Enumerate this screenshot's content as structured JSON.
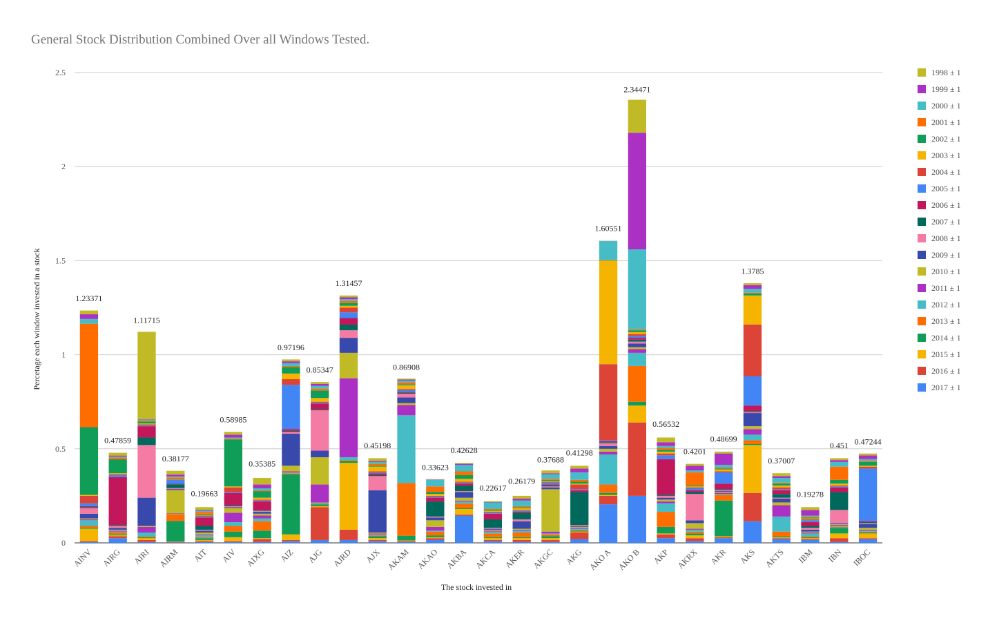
{
  "chart_data": {
    "type": "stacked_bar",
    "title": "General Stock Distribution Combined Over all Windows Tested.",
    "x_label": "The stock invested in",
    "y_label": "Percetage each window invested in a stock",
    "categories": [
      "AINV",
      "AIRG",
      "AIRI",
      "AIRM",
      "AIT",
      "AIV",
      "AIXG",
      "AIZ",
      "AJG",
      "AJRD",
      "AJX",
      "AKAM",
      "AKAO",
      "AKBA",
      "AKCA",
      "AKER",
      "AKGC",
      "AKG",
      "AKO A",
      "AKO B",
      "AKP",
      "AKRX",
      "AKR",
      "AKS",
      "AKTS",
      "IBM",
      "IBN",
      "IBOC"
    ],
    "totals": [
      1.23371,
      0.47859,
      1.11715,
      0.38177,
      0.19663,
      0.58985,
      0.35385,
      0.97196,
      0.85347,
      1.31457,
      0.45198,
      0.86908,
      0.33623,
      0.42628,
      0.22617,
      0.26179,
      0.37688,
      0.41298,
      1.60551,
      2.34471,
      0.56532,
      0.4201,
      0.48699,
      1.3785,
      0.37007,
      0.19278,
      0.451,
      0.47244
    ],
    "ylim": [
      0,
      2.5
    ],
    "yticks": [
      0,
      0.5,
      1,
      1.5,
      2,
      2.5
    ],
    "grid": true,
    "legend": "right",
    "stack_order": "last-series-at-bottom",
    "series": [
      {
        "name": "1998 ± 1",
        "color": "#c0ba26",
        "values": [
          0.02,
          0.015,
          0.465,
          0.02,
          0.015,
          0.015,
          0.035,
          0.01,
          0.01,
          0.01,
          0.015,
          0.005,
          0.002,
          0.005,
          0.005,
          0.015,
          0.015,
          0.015,
          0.001,
          0.175,
          0.025,
          0.01,
          0.01,
          0.01,
          0.015,
          0.015,
          0.01,
          0.01
        ]
      },
      {
        "name": "1999 ± 1",
        "color": "#ab30c4",
        "values": [
          0.025,
          0.005,
          0.002,
          0.01,
          0.005,
          0.015,
          0.02,
          0.01,
          0.01,
          0.01,
          0.005,
          0.005,
          0.002,
          0.005,
          0.002,
          0.01,
          0.005,
          0.02,
          0.001,
          0.62,
          0.02,
          0.025,
          0.06,
          0.02,
          0.01,
          0.03,
          0.01,
          0.02
        ]
      },
      {
        "name": "2000 ± 1",
        "color": "#46bdc6",
        "values": [
          0.025,
          0.005,
          0.005,
          0.005,
          0.005,
          0.005,
          0.01,
          0.015,
          0.015,
          0.01,
          0.01,
          0.01,
          0.035,
          0.035,
          0.035,
          0.03,
          0.025,
          0.04,
          0.1,
          0.425,
          0.01,
          0.01,
          0.015,
          0.02,
          0.025,
          0.005,
          0.025,
          0.01
        ]
      },
      {
        "name": "2001 ± 1",
        "color": "#ff6d00",
        "values": [
          0.55,
          0.01,
          0.005,
          0.005,
          0.01,
          0.005,
          0.005,
          0.005,
          0.01,
          0.01,
          0.01,
          0.01,
          0.03,
          0.02,
          0.005,
          0.005,
          0.005,
          0.01,
          0.002,
          0.005,
          0.01,
          0.07,
          0.005,
          0.005,
          0.005,
          0.005,
          0.07,
          0.005
        ]
      },
      {
        "name": "2002 ± 1",
        "color": "#0f9d58",
        "values": [
          0.36,
          0.074,
          0.01,
          0.003,
          0.005,
          0.25,
          0.035,
          0.035,
          0.04,
          0.015,
          0.005,
          0.005,
          0.01,
          0.02,
          0.005,
          0.005,
          0.005,
          0.01,
          0.002,
          0.01,
          0.01,
          0.005,
          0.005,
          0.01,
          0.01,
          0.005,
          0.02,
          0.02
        ]
      },
      {
        "name": "2003 ± 1",
        "color": "#f4b400",
        "values": [
          0.005,
          0.005,
          0.005,
          0.003,
          0.005,
          0.005,
          0.01,
          0.03,
          0.02,
          0.01,
          0.025,
          0.02,
          0.01,
          0.015,
          0.005,
          0.01,
          0.005,
          0.005,
          0.55,
          0.01,
          0.01,
          0.005,
          0.01,
          0.155,
          0.01,
          0.005,
          0.01,
          0.005
        ]
      },
      {
        "name": "2004 ± 1",
        "color": "#db4437",
        "values": [
          0.04,
          0.005,
          0.005,
          0.003,
          0.005,
          0.025,
          0.005,
          0.03,
          0.005,
          0.025,
          0.005,
          0.005,
          0.005,
          0.005,
          0.005,
          0.005,
          0.005,
          0.025,
          0.405,
          0.01,
          0.01,
          0.005,
          0.005,
          0.275,
          0.01,
          0.005,
          0.005,
          0.01
        ]
      },
      {
        "name": "2005 ± 1",
        "color": "#4285f4",
        "values": [
          0.015,
          0.01,
          0.005,
          0.02,
          0.005,
          0.005,
          0.005,
          0.235,
          0.005,
          0.03,
          0.005,
          0.01,
          0.005,
          0.005,
          0.005,
          0.005,
          0.01,
          0.005,
          0.005,
          0.01,
          0.02,
          0.01,
          0.06,
          0.155,
          0.005,
          0.01,
          0.005,
          0.28
        ]
      },
      {
        "name": "2006 ± 1",
        "color": "#c2185b",
        "values": [
          0.005,
          0.255,
          0.06,
          0.003,
          0.045,
          0.065,
          0.045,
          0.01,
          0.03,
          0.035,
          0.01,
          0.005,
          0.02,
          0.01,
          0.03,
          0.005,
          0.005,
          0.01,
          0.005,
          0.01,
          0.19,
          0.01,
          0.03,
          0.03,
          0.02,
          0.02,
          0.025,
          0.005
        ]
      },
      {
        "name": "2007 ± 1",
        "color": "#00695c",
        "values": [
          0.005,
          0.005,
          0.04,
          0.02,
          0.02,
          0.005,
          0.005,
          0.005,
          0.005,
          0.03,
          0.005,
          0.005,
          0.08,
          0.03,
          0.045,
          0.035,
          0.005,
          0.175,
          0.005,
          0.01,
          0.005,
          0.01,
          0.005,
          0.005,
          0.02,
          0.01,
          0.095,
          0.005
        ]
      },
      {
        "name": "2008 ± 1",
        "color": "#f47ca4",
        "values": [
          0.03,
          0.01,
          0.28,
          0.005,
          0.005,
          0.005,
          0.005,
          0.01,
          0.215,
          0.04,
          0.075,
          0.02,
          0.005,
          0.005,
          0.005,
          0.01,
          0.005,
          0.005,
          0.015,
          0.01,
          0.01,
          0.14,
          0.005,
          0.005,
          0.005,
          0.01,
          0.07,
          0.005
        ]
      },
      {
        "name": "2009 ± 1",
        "color": "#3949ab",
        "values": [
          0.025,
          0.01,
          0.15,
          0.005,
          0.01,
          0.005,
          0.01,
          0.17,
          0.035,
          0.08,
          0.225,
          0.03,
          0.015,
          0.03,
          0.005,
          0.04,
          0.01,
          0.005,
          0.015,
          0.02,
          0.01,
          0.015,
          0.005,
          0.07,
          0.02,
          0.01,
          0.005,
          0.02
        ]
      },
      {
        "name": "2010 ± 1",
        "color": "#c0ba26",
        "values": [
          0.005,
          0.005,
          0.005,
          0.125,
          0.01,
          0.025,
          0.01,
          0.03,
          0.145,
          0.135,
          0.005,
          0.01,
          0.035,
          0.015,
          0.005,
          0.005,
          0.225,
          0.005,
          0.015,
          0.01,
          0.01,
          0.03,
          0.005,
          0.015,
          0.015,
          0.005,
          0.005,
          0.01
        ]
      },
      {
        "name": "2011 ± 1",
        "color": "#ab30c4",
        "values": [
          0.005,
          0.005,
          0.03,
          0.002,
          0.005,
          0.05,
          0.015,
          0.005,
          0.095,
          0.42,
          0.005,
          0.055,
          0.02,
          0.005,
          0.005,
          0.005,
          0.01,
          0.005,
          0.015,
          0.02,
          0.01,
          0.005,
          0.005,
          0.03,
          0.06,
          0.005,
          0.005,
          0.005
        ]
      },
      {
        "name": "2012 ± 1",
        "color": "#46bdc6",
        "values": [
          0.03,
          0.005,
          0.02,
          0.002,
          0.01,
          0.02,
          0.015,
          0.005,
          0.005,
          0.015,
          0.005,
          0.36,
          0.005,
          0.01,
          0.01,
          0.01,
          0.005,
          0.005,
          0.16,
          0.07,
          0.045,
          0.01,
          0.005,
          0.03,
          0.08,
          0.015,
          0.005,
          0.005
        ]
      },
      {
        "name": "2013 ± 1",
        "color": "#ff6d00",
        "values": [
          0.01,
          0.01,
          0.005,
          0.035,
          0.005,
          0.03,
          0.05,
          0.005,
          0.005,
          0.005,
          0.005,
          0.28,
          0.02,
          0.025,
          0.02,
          0.025,
          0.01,
          0.005,
          0.045,
          0.19,
          0.08,
          0.01,
          0.03,
          0.02,
          0.025,
          0.005,
          0.005,
          0.005
        ]
      },
      {
        "name": "2014 ± 1",
        "color": "#0f9d58",
        "values": [
          0.005,
          0.005,
          0.005,
          0.11,
          0.01,
          0.03,
          0.04,
          0.32,
          0.01,
          0.01,
          0.01,
          0.025,
          0.01,
          0.005,
          0.005,
          0.005,
          0.01,
          0.005,
          0.01,
          0.02,
          0.035,
          0.01,
          0.19,
          0.005,
          0.005,
          0.005,
          0.03,
          0.005
        ]
      },
      {
        "name": "2015 ± 1",
        "color": "#f4b400",
        "values": [
          0.065,
          0.005,
          0.01,
          0.002,
          0.005,
          0.02,
          0.005,
          0.03,
          0.005,
          0.355,
          0.01,
          0.003,
          0.005,
          0.03,
          0.01,
          0.01,
          0.01,
          0.005,
          0.005,
          0.09,
          0.005,
          0.015,
          0.005,
          0.255,
          0.005,
          0.005,
          0.025,
          0.025
        ]
      },
      {
        "name": "2016 ± 1",
        "color": "#db4437",
        "values": [
          0.005,
          0.01,
          0.01,
          0.003,
          0.005,
          0.005,
          0.015,
          0.005,
          0.175,
          0.055,
          0.005,
          0.005,
          0.01,
          0.005,
          0.005,
          0.01,
          0.01,
          0.035,
          0.045,
          0.39,
          0.02,
          0.015,
          0.005,
          0.15,
          0.005,
          0.005,
          0.02,
          0.005
        ]
      },
      {
        "name": "2017 ± 1",
        "color": "#4285f4",
        "values": [
          0.005,
          0.025,
          0.005,
          0.002,
          0.005,
          0.005,
          0.005,
          0.01,
          0.015,
          0.015,
          0.01,
          0.005,
          0.015,
          0.145,
          0.01,
          0.005,
          0.005,
          0.02,
          0.205,
          0.25,
          0.025,
          0.01,
          0.025,
          0.115,
          0.02,
          0.015,
          0.005,
          0.02
        ]
      }
    ]
  }
}
